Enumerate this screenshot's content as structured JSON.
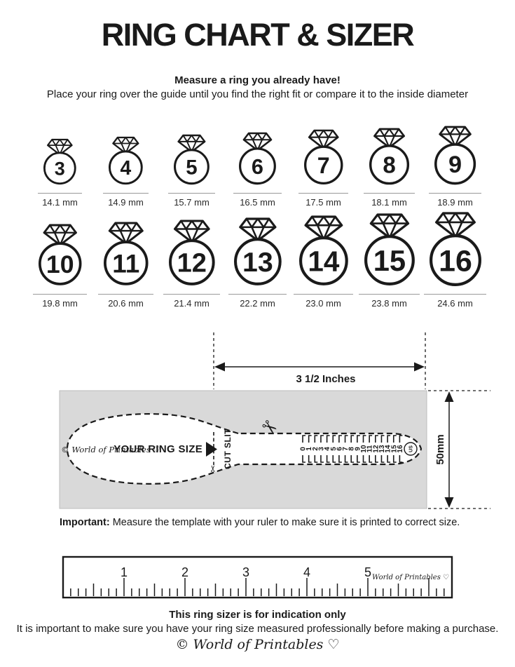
{
  "page": {
    "title": "RING CHART & SIZER",
    "intro_heading": "Measure a ring you already have!",
    "intro_text": "Place your ring over the guide until you find the right fit or compare it to the inside diameter"
  },
  "ring_chart": {
    "rows": [
      {
        "rings": [
          {
            "size": "3",
            "diameter_label": "14.1 mm",
            "mm": 14.1
          },
          {
            "size": "4",
            "diameter_label": "14.9 mm",
            "mm": 14.9
          },
          {
            "size": "5",
            "diameter_label": "15.7 mm",
            "mm": 15.7
          },
          {
            "size": "6",
            "diameter_label": "16.5 mm",
            "mm": 16.5
          },
          {
            "size": "7",
            "diameter_label": "17.5 mm",
            "mm": 17.5
          },
          {
            "size": "8",
            "diameter_label": "18.1 mm",
            "mm": 18.1
          },
          {
            "size": "9",
            "diameter_label": "18.9 mm",
            "mm": 18.9
          }
        ]
      },
      {
        "rings": [
          {
            "size": "10",
            "diameter_label": "19.8 mm",
            "mm": 19.8
          },
          {
            "size": "11",
            "diameter_label": "20.6 mm",
            "mm": 20.6
          },
          {
            "size": "12",
            "diameter_label": "21.4 mm",
            "mm": 21.4
          },
          {
            "size": "13",
            "diameter_label": "22.2 mm",
            "mm": 22.2
          },
          {
            "size": "14",
            "diameter_label": "23.0 mm",
            "mm": 23.0
          },
          {
            "size": "15",
            "diameter_label": "23.8 mm",
            "mm": 23.8
          },
          {
            "size": "16",
            "diameter_label": "24.6 mm",
            "mm": 24.6
          }
        ]
      }
    ]
  },
  "sizer": {
    "width_dimension_label": "3 1/2 Inches",
    "height_dimension_label": "50mm",
    "brand_label": "© World of Printables ♡",
    "pointer_label": "YOUR RING SIZE",
    "cut_slit_label": "CUT SLIT",
    "scale_numbers": [
      "0",
      "1",
      "2",
      "3",
      "4",
      "5",
      "6",
      "7",
      "8",
      "9",
      "10",
      "11",
      "12",
      "13",
      "14",
      "15",
      "16"
    ],
    "unit_badge": "US"
  },
  "important_note": {
    "prefix": "Important:",
    "text": " Measure the template with your ruler to make sure it is printed to correct size."
  },
  "ruler": {
    "inch_numbers": [
      "1",
      "2",
      "3",
      "4",
      "5"
    ],
    "brand_label": "World of Printables ♡"
  },
  "footer": {
    "heading": "This ring sizer is for indication only",
    "text": "It is important to make sure you have your ring size measured professionally before making a purchase.",
    "brand_label": "© World of Printables ♡"
  },
  "icons": {
    "scissors": "✂"
  },
  "colors": {
    "ink": "#1a1a1a",
    "panel_gray": "#d9d9d9",
    "line_gray": "#999999"
  }
}
